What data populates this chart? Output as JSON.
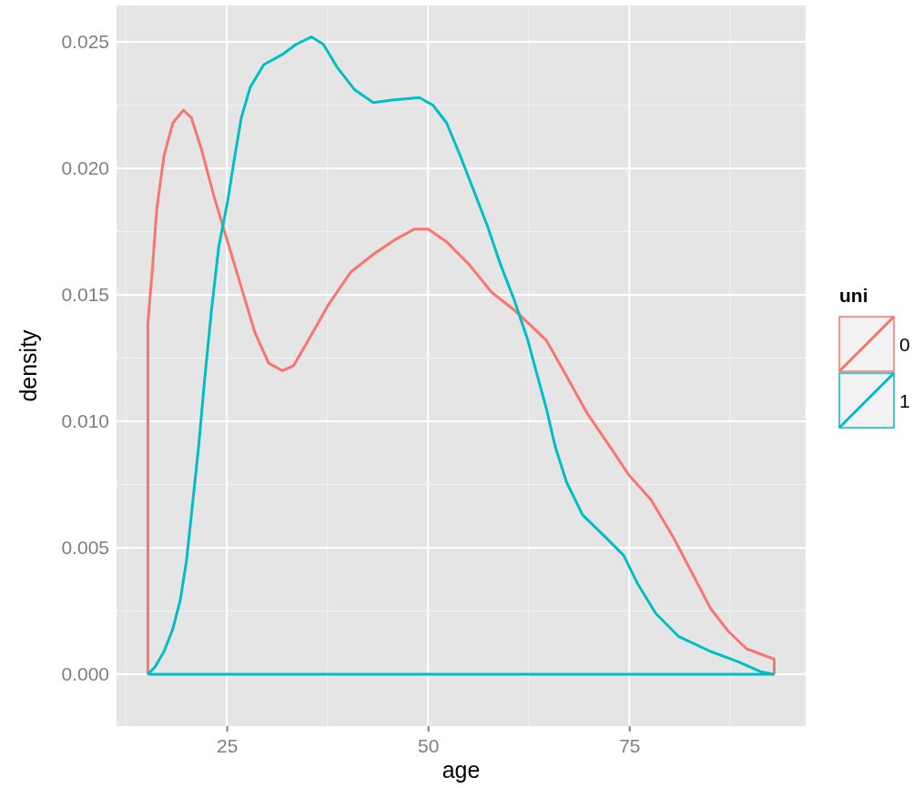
{
  "chart_data": {
    "type": "line",
    "ref_lines": [
      {
        "axis": "y",
        "value": 0,
        "color": "#00bfc4"
      }
    ],
    "xlabel": "age",
    "ylabel": "density",
    "legend_title": "uni",
    "legend": "right",
    "grid": true,
    "line_style": "solid",
    "xlim": [
      11.3,
      96.9
    ],
    "xticks": [
      25,
      50,
      75
    ],
    "ylim": [
      -0.00205,
      0.02644
    ],
    "yticks": [
      {
        "value": 0,
        "label": "0.000"
      },
      {
        "value": 0.005,
        "label": "0.005"
      },
      {
        "value": 0.01,
        "label": "0.010"
      },
      {
        "value": 0.015,
        "label": "0.015"
      },
      {
        "value": 0.02,
        "label": "0.020"
      },
      {
        "value": 0.025,
        "label": "0.025"
      }
    ],
    "series": [
      {
        "name": "0",
        "color": "#f8766d",
        "x": [
          15.2,
          15.2,
          15.8,
          16.3,
          17.2,
          18.3,
          19.6,
          20.6,
          21.9,
          23.4,
          25.1,
          26.8,
          28.5,
          30.2,
          31.9,
          33.3,
          35.3,
          37.6,
          40.4,
          43.2,
          46.0,
          48.3,
          50.0,
          52.3,
          55.1,
          57.9,
          60.7,
          62.4,
          64.7,
          67.0,
          69.8,
          72.6,
          74.9,
          77.7,
          80.5,
          82.8,
          85.1,
          87.3,
          89.6,
          91.3,
          93.0,
          93.0
        ],
        "values": [
          0,
          0.0139,
          0.0162,
          0.0184,
          0.0205,
          0.0218,
          0.0223,
          0.022,
          0.0207,
          0.0189,
          0.0171,
          0.0153,
          0.0135,
          0.0123,
          0.012,
          0.0122,
          0.0133,
          0.0146,
          0.0159,
          0.0166,
          0.0172,
          0.0176,
          0.0176,
          0.0171,
          0.0162,
          0.0151,
          0.0144,
          0.0139,
          0.0132,
          0.0119,
          0.0103,
          0.009,
          0.0079,
          0.0069,
          0.0054,
          0.004,
          0.0026,
          0.0017,
          0.001,
          0.0008,
          0.0006,
          0
        ]
      },
      {
        "name": "1",
        "color": "#00bfc4",
        "x": [
          15.2,
          16.1,
          17.2,
          18.3,
          19.2,
          20.0,
          20.8,
          21.5,
          22.2,
          23.1,
          24.0,
          25.1,
          26.0,
          26.8,
          27.9,
          29.6,
          31.9,
          33.6,
          35.5,
          37.0,
          38.7,
          40.9,
          43.2,
          45.5,
          48.9,
          50.6,
          52.3,
          54.0,
          55.7,
          57.4,
          59.0,
          60.7,
          62.4,
          63.5,
          64.7,
          65.8,
          67.2,
          69.2,
          72.1,
          74.3,
          76.0,
          78.3,
          81.1,
          85.1,
          88.5,
          91.3,
          93.0
        ],
        "values": [
          0,
          0.0003,
          0.0009,
          0.0018,
          0.0029,
          0.0045,
          0.0069,
          0.009,
          0.0115,
          0.0144,
          0.0169,
          0.0187,
          0.0205,
          0.022,
          0.0232,
          0.0241,
          0.0245,
          0.0249,
          0.0252,
          0.0249,
          0.024,
          0.0231,
          0.0226,
          0.0227,
          0.0228,
          0.0225,
          0.0218,
          0.0205,
          0.0191,
          0.0177,
          0.0162,
          0.0148,
          0.0132,
          0.0119,
          0.0105,
          0.009,
          0.0076,
          0.0063,
          0.0054,
          0.0047,
          0.0036,
          0.0024,
          0.0015,
          0.0009,
          0.0005,
          0.0001,
          0
        ]
      }
    ]
  }
}
